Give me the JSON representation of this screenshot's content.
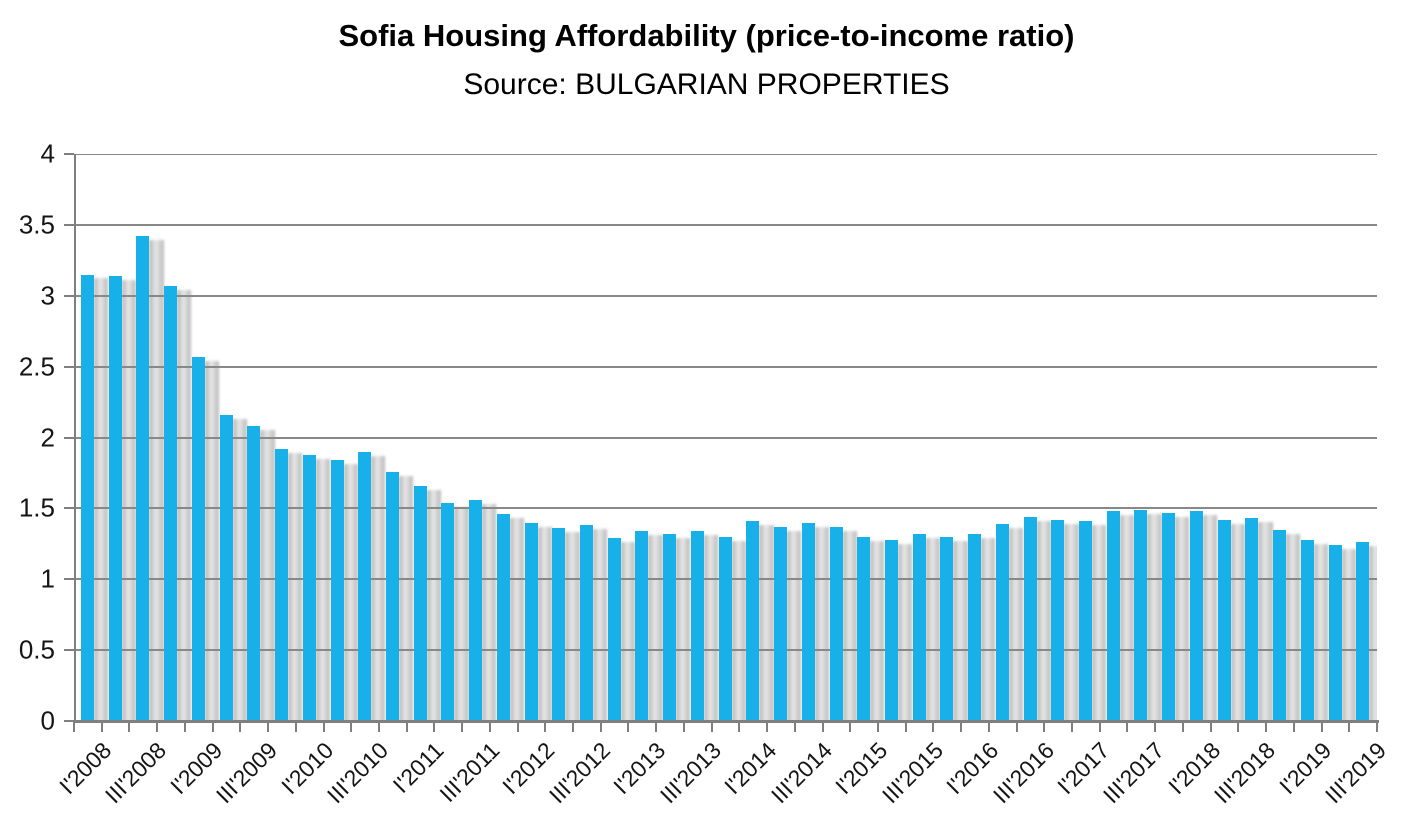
{
  "title": "Sofia Housing Affordability (price-to-income ratio)",
  "subtitle": "Source: BULGARIAN PROPERTIES",
  "colors": {
    "bar": "#17b0e9",
    "gridline": "#888888",
    "axis": "#7f7f7f",
    "text": "#151515"
  },
  "chart_data": {
    "type": "bar",
    "title": "Sofia Housing Affordability (price-to-income ratio)",
    "subtitle": "Source: BULGARIAN PROPERTIES",
    "xlabel": "",
    "ylabel": "",
    "ylim": [
      0,
      4
    ],
    "y_tick_step": 0.5,
    "y_ticks": [
      0,
      0.5,
      1,
      1.5,
      2,
      2.5,
      3,
      3.5,
      4
    ],
    "grid": true,
    "legend_position": "none",
    "bar_color": "#17b0e9",
    "categories": [
      "I'2008",
      "II'2008",
      "III'2008",
      "IV'2008",
      "I'2009",
      "II'2009",
      "III'2009",
      "IV'2009",
      "I'2010",
      "II'2010",
      "III'2010",
      "IV'2010",
      "I'2011",
      "II'2011",
      "III'2011",
      "IV'2011",
      "I'2012",
      "II'2012",
      "III'2012",
      "IV'2012",
      "I'2013",
      "II'2013",
      "III'2013",
      "IV'2013",
      "I'2014",
      "II'2014",
      "III'2014",
      "IV'2014",
      "I'2015",
      "II'2015",
      "III'2015",
      "IV'2015",
      "I'2016",
      "II'2016",
      "III'2016",
      "IV'2016",
      "I'2017",
      "II'2017",
      "III'2017",
      "IV'2017",
      "I'2018",
      "II'2018",
      "III'2018",
      "IV'2018",
      "I'2019",
      "II'2019",
      "III'2019"
    ],
    "values": [
      3.15,
      3.14,
      3.42,
      3.07,
      2.57,
      2.16,
      2.08,
      1.92,
      1.88,
      1.84,
      1.9,
      1.76,
      1.66,
      1.54,
      1.56,
      1.46,
      1.4,
      1.36,
      1.38,
      1.29,
      1.34,
      1.32,
      1.34,
      1.3,
      1.41,
      1.37,
      1.4,
      1.37,
      1.3,
      1.28,
      1.32,
      1.3,
      1.32,
      1.39,
      1.44,
      1.42,
      1.41,
      1.48,
      1.49,
      1.47,
      1.48,
      1.42,
      1.43,
      1.35,
      1.28,
      1.24,
      1.26
    ],
    "x_tick_labels": [
      "I'2008",
      "III'2008",
      "I'2009",
      "III'2009",
      "I'2010",
      "III'2010",
      "I'2011",
      "III'2011",
      "I'2012",
      "III'2012",
      "I'2013",
      "III'2013",
      "I'2014",
      "III'2014",
      "I'2015",
      "III'2015",
      "I'2016",
      "III'2016",
      "I'2017",
      "III'2017",
      "I'2018",
      "III'2018",
      "I'2019",
      "III'2019"
    ]
  }
}
